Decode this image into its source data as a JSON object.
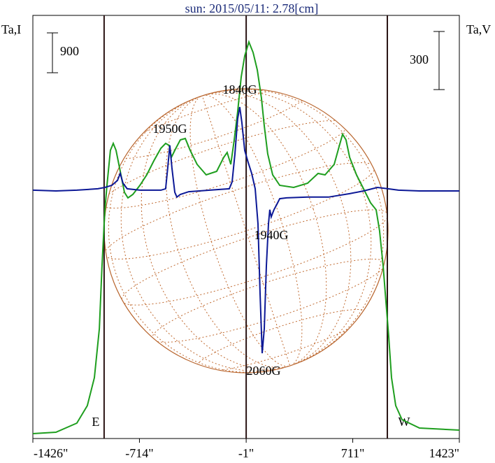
{
  "chart_data": {
    "type": "line",
    "title": "sun: 2015/05/11: 2.78[cm]",
    "y_label": "Ta,I",
    "y2_label": "Ta,V",
    "xlim": [
      -1426,
      1423
    ],
    "xticks": [
      {
        "value": -1426,
        "label": "-1426\""
      },
      {
        "value": -714,
        "label": "-714\""
      },
      {
        "value": -1,
        "label": "-1\""
      },
      {
        "value": 711,
        "label": "711\""
      },
      {
        "value": 1423,
        "label": "1423\""
      }
    ],
    "ylim": [
      0,
      9553
    ],
    "y2lim": [
      -1278,
      906
    ],
    "scale_bar": {
      "label": "900",
      "value": 900
    },
    "scale_bar2": {
      "label": "300",
      "value": 300
    },
    "limb_lines": [
      {
        "label": "E",
        "x": -950
      },
      {
        "label": "W",
        "x": 942
      }
    ],
    "annotations": [
      "1950G",
      "1840G",
      "1940G",
      "2060G"
    ],
    "series": [
      {
        "name": "I",
        "color": "#1e9e1e",
        "x": [
          -1426,
          -1272,
          -1132,
          -1062,
          -1015,
          -982,
          -964,
          -945,
          -931,
          -908,
          -889,
          -870,
          -842,
          -814,
          -791,
          -758,
          -711,
          -665,
          -618,
          -571,
          -539,
          -515,
          -501,
          -478,
          -441,
          -408,
          -375,
          -329,
          -268,
          -198,
          -151,
          -128,
          -104,
          -81,
          -58,
          -34,
          -11,
          17,
          45,
          73,
          101,
          120,
          143,
          176,
          223,
          316,
          409,
          479,
          526,
          587,
          619,
          643,
          666,
          690,
          736,
          783,
          830,
          867,
          890,
          914,
          932,
          951,
          970,
          998,
          1040,
          1157,
          1423
        ],
        "values": [
          111,
          142,
          347,
          742,
          1374,
          2479,
          3900,
          5163,
          5716,
          6505,
          6663,
          6505,
          6032,
          5558,
          5432,
          5511,
          5716,
          5953,
          6269,
          6553,
          6663,
          6616,
          6348,
          6505,
          6742,
          6774,
          6505,
          6190,
          5953,
          6032,
          6348,
          6458,
          6190,
          6742,
          7374,
          8163,
          8637,
          8953,
          8716,
          8321,
          7690,
          7058,
          6427,
          5953,
          5716,
          5669,
          5763,
          5984,
          5953,
          6190,
          6584,
          6869,
          6742,
          6348,
          5953,
          5637,
          5321,
          5163,
          4690,
          3900,
          3111,
          2321,
          1374,
          742,
          426,
          237,
          189
        ]
      },
      {
        "name": "V",
        "color": "#0c1896",
        "axis": "y2",
        "x": [
          -1426,
          -1272,
          -1132,
          -992,
          -945,
          -898,
          -861,
          -842,
          -824,
          -796,
          -711,
          -571,
          -539,
          -525,
          -511,
          -497,
          -478,
          -464,
          -441,
          -385,
          -244,
          -114,
          -95,
          -76,
          -58,
          -44,
          -30,
          -11,
          12,
          36,
          59,
          78,
          92,
          106,
          120,
          134,
          148,
          157,
          166,
          185,
          204,
          223,
          269,
          409,
          549,
          690,
          783,
          876,
          946,
          1016,
          1157,
          1423
        ],
        "values": [
          4,
          0,
          4,
          11,
          18,
          29,
          54,
          90,
          40,
          11,
          4,
          4,
          11,
          119,
          235,
          119,
          -7,
          -32,
          -18,
          -4,
          4,
          11,
          47,
          191,
          372,
          433,
          354,
          209,
          148,
          90,
          11,
          -170,
          -531,
          -838,
          -711,
          -386,
          -170,
          -97,
          -134,
          -97,
          -69,
          -40,
          -36,
          -32,
          -32,
          -14,
          0,
          18,
          11,
          4,
          0,
          0
        ]
      }
    ]
  }
}
